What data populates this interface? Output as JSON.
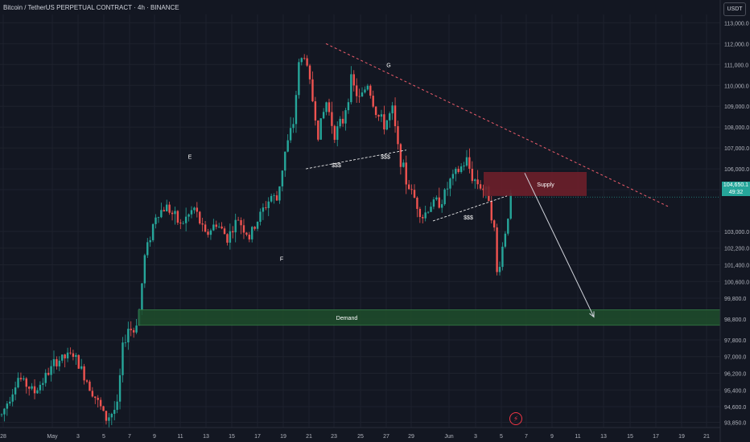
{
  "header": {
    "title": "Bitcoin / TetherUS PERPETUAL CONTRACT · 4h · BINANCE",
    "currency_button": "USDT"
  },
  "price_badge": {
    "price": "104,650.1",
    "countdown": "49:32"
  },
  "colors": {
    "background": "#131722",
    "grid": "#1e222d",
    "up_candle": "#26a69a",
    "down_candle": "#ef5350",
    "supply_zone": "#6d1f2a",
    "demand_zone": "#1e4d2b",
    "trendline": "#f05d6c",
    "projection_arrow": "#d1d4dc"
  },
  "chart_data": {
    "type": "candlestick",
    "interval": "4h",
    "ylim": [
      93600,
      113400
    ],
    "y_ticks": [
      "113,000.0",
      "112,000.0",
      "111,000.0",
      "110,000.0",
      "109,000.0",
      "108,000.0",
      "107,000.0",
      "106,000.0",
      "105,000.0",
      "103,000.0",
      "102,200.0",
      "101,400.0",
      "100,600.0",
      "99,800.0",
      "98,800.0",
      "97,800.0",
      "97,000.0",
      "96,200.0",
      "95,400.0",
      "94,600.0",
      "93,850.0"
    ],
    "y_tick_values": [
      113000,
      112000,
      111000,
      110000,
      109000,
      108000,
      107000,
      106000,
      105000,
      103000,
      102200,
      101400,
      100600,
      99800,
      98800,
      97800,
      97000,
      96200,
      95400,
      94600,
      93850
    ],
    "x_ticks": [
      "28",
      "May",
      "3",
      "5",
      "7",
      "9",
      "11",
      "13",
      "15",
      "17",
      "19",
      "21",
      "23",
      "25",
      "27",
      "29",
      "Jun",
      "3",
      "5",
      "7",
      "9",
      "11",
      "13",
      "15",
      "17",
      "19",
      "21"
    ],
    "x_tick_positions": [
      4,
      65,
      97,
      129,
      161,
      192,
      224,
      256,
      288,
      320,
      352,
      384,
      415,
      448,
      480,
      511,
      558,
      591,
      623,
      654,
      686,
      718,
      750,
      783,
      815,
      847,
      878
    ],
    "anchors": [
      {
        "t": 0,
        "p": 94200
      },
      {
        "t": 6,
        "p": 96000
      },
      {
        "t": 12,
        "p": 95300
      },
      {
        "t": 20,
        "p": 96800
      },
      {
        "t": 26,
        "p": 97100
      },
      {
        "t": 32,
        "p": 95600
      },
      {
        "t": 38,
        "p": 94000
      },
      {
        "t": 42,
        "p": 94600
      },
      {
        "t": 44,
        "p": 97400
      },
      {
        "t": 46,
        "p": 98400
      },
      {
        "t": 48,
        "p": 98200
      },
      {
        "t": 50,
        "p": 99200
      },
      {
        "t": 52,
        "p": 101800
      },
      {
        "t": 56,
        "p": 103800
      },
      {
        "t": 60,
        "p": 104200
      },
      {
        "t": 65,
        "p": 103300
      },
      {
        "t": 70,
        "p": 104100
      },
      {
        "t": 74,
        "p": 102800
      },
      {
        "t": 78,
        "p": 103400
      },
      {
        "t": 82,
        "p": 102700
      },
      {
        "t": 86,
        "p": 103600
      },
      {
        "t": 90,
        "p": 102700
      },
      {
        "t": 94,
        "p": 103800
      },
      {
        "t": 98,
        "p": 104700
      },
      {
        "t": 100,
        "p": 104500
      },
      {
        "t": 103,
        "p": 106800
      },
      {
        "t": 106,
        "p": 108200
      },
      {
        "t": 108,
        "p": 111000
      },
      {
        "t": 110,
        "p": 111500
      },
      {
        "t": 112,
        "p": 110100
      },
      {
        "t": 115,
        "p": 107700
      },
      {
        "t": 118,
        "p": 109200
      },
      {
        "t": 121,
        "p": 107700
      },
      {
        "t": 124,
        "p": 108300
      },
      {
        "t": 127,
        "p": 110200
      },
      {
        "t": 130,
        "p": 109300
      },
      {
        "t": 133,
        "p": 110100
      },
      {
        "t": 136,
        "p": 108700
      },
      {
        "t": 139,
        "p": 108100
      },
      {
        "t": 142,
        "p": 108800
      },
      {
        "t": 144,
        "p": 107000
      },
      {
        "t": 147,
        "p": 105400
      },
      {
        "t": 150,
        "p": 104600
      },
      {
        "t": 153,
        "p": 103700
      },
      {
        "t": 156,
        "p": 104300
      },
      {
        "t": 160,
        "p": 104500
      },
      {
        "t": 163,
        "p": 105400
      },
      {
        "t": 166,
        "p": 105900
      },
      {
        "t": 169,
        "p": 106400
      },
      {
        "t": 171,
        "p": 105600
      },
      {
        "t": 174,
        "p": 105200
      },
      {
        "t": 177,
        "p": 104700
      },
      {
        "t": 179,
        "p": 103000
      },
      {
        "t": 180,
        "p": 101000
      },
      {
        "t": 181,
        "p": 101500
      },
      {
        "t": 183,
        "p": 103000
      },
      {
        "t": 185,
        "p": 104650
      }
    ],
    "candle_count": 186,
    "annotations": {
      "point_labels": [
        {
          "text": "E",
          "price": 106600
        },
        {
          "text": "F",
          "price": 101700
        },
        {
          "text": "G",
          "price": 111000
        }
      ],
      "liquidity_labels": [
        {
          "text": "$$$",
          "price": 106200
        },
        {
          "text": "$$$",
          "price": 106600
        },
        {
          "text": "$$$",
          "price": 103700
        }
      ],
      "supply_zone": {
        "label": "Supply",
        "price_high": 105850,
        "price_low": 104700
      },
      "demand_zone": {
        "label": "Demand",
        "price_high": 99250,
        "price_low": 98500
      },
      "trendline": {
        "from_price": 112000,
        "to_price": 104200
      },
      "projection": {
        "from_price": 105800,
        "to_price": 98900
      }
    }
  }
}
